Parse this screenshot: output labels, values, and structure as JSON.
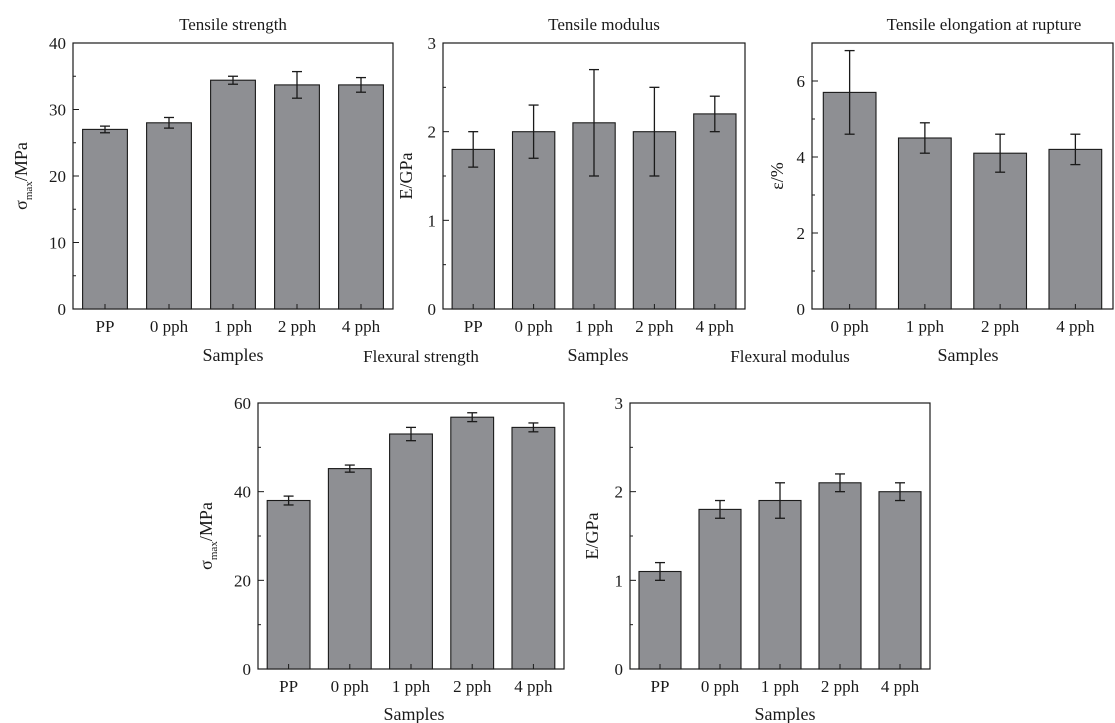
{
  "figure": {
    "background": "#ffffff",
    "bar_color": "#8e8f93",
    "stroke_color": "#1a1a1a"
  },
  "chart_data": [
    {
      "id": "tensile-strength",
      "type": "bar",
      "title": "Tensile strength",
      "xlabel": "Samples",
      "ylabel": {
        "base": "σ",
        "sub": "max",
        "rest": "/MPa"
      },
      "categories": [
        "PP",
        "0 pph",
        "1 pph",
        "2 pph",
        "4 pph"
      ],
      "values": [
        27.0,
        28.0,
        34.4,
        33.7,
        33.7
      ],
      "errors": [
        0.5,
        0.8,
        0.6,
        2.0,
        1.1
      ],
      "ylim": [
        0,
        40
      ],
      "yticks": [
        0,
        10,
        20,
        30,
        40
      ],
      "ytick_labels": [
        "0",
        "10",
        "20",
        "30",
        "40"
      ],
      "grid": false
    },
    {
      "id": "tensile-modulus",
      "type": "bar",
      "title": "Tensile modulus",
      "xlabel": "Samples",
      "ylabel": {
        "base": "E/GPa",
        "sub": "",
        "rest": ""
      },
      "categories": [
        "PP",
        "0 pph",
        "1 pph",
        "2 pph",
        "4 pph"
      ],
      "values": [
        1.8,
        2.0,
        2.1,
        2.0,
        2.2
      ],
      "errors": [
        0.2,
        0.3,
        0.6,
        0.5,
        0.2
      ],
      "ylim": [
        0,
        3
      ],
      "yticks": [
        0,
        1,
        2,
        3
      ],
      "ytick_labels": [
        "0",
        "1",
        "2",
        "3"
      ],
      "grid": false
    },
    {
      "id": "tensile-elongation",
      "type": "bar",
      "title": "Tensile elongation at rupture",
      "xlabel": "Samples",
      "ylabel": {
        "base": "ε/%",
        "sub": "",
        "rest": ""
      },
      "categories": [
        "0 pph",
        "1 pph",
        "2 pph",
        "4 pph"
      ],
      "values": [
        5.7,
        4.5,
        4.1,
        4.2
      ],
      "errors": [
        1.1,
        0.4,
        0.5,
        0.4
      ],
      "ylim": [
        0,
        7
      ],
      "yticks": [
        0,
        2,
        4,
        6
      ],
      "ytick_labels": [
        "0",
        "2",
        "4",
        "6"
      ],
      "grid": false
    },
    {
      "id": "flexural-strength",
      "type": "bar",
      "title": "Flexural strength",
      "xlabel": "Samples",
      "ylabel": {
        "base": "σ",
        "sub": "max",
        "rest": "/MPa"
      },
      "categories": [
        "PP",
        "0 pph",
        "1 pph",
        "2 pph",
        "4 pph"
      ],
      "values": [
        38.0,
        45.2,
        53.0,
        56.8,
        54.5
      ],
      "errors": [
        1.0,
        0.8,
        1.5,
        1.0,
        1.0
      ],
      "ylim": [
        0,
        60
      ],
      "yticks": [
        0,
        20,
        40,
        60
      ],
      "ytick_labels": [
        "0",
        "20",
        "40",
        "60"
      ],
      "grid": false
    },
    {
      "id": "flexural-modulus",
      "type": "bar",
      "title": "Flexural modulus",
      "xlabel": "Samples",
      "ylabel": {
        "base": "E/GPa",
        "sub": "",
        "rest": ""
      },
      "categories": [
        "PP",
        "0 pph",
        "1 pph",
        "2 pph",
        "4 pph"
      ],
      "values": [
        1.1,
        1.8,
        1.9,
        2.1,
        2.0
      ],
      "errors": [
        0.1,
        0.1,
        0.2,
        0.1,
        0.1
      ],
      "ylim": [
        0,
        3
      ],
      "yticks": [
        0,
        1,
        2,
        3
      ],
      "ytick_labels": [
        "0",
        "1",
        "2",
        "3"
      ],
      "grid": false
    }
  ]
}
